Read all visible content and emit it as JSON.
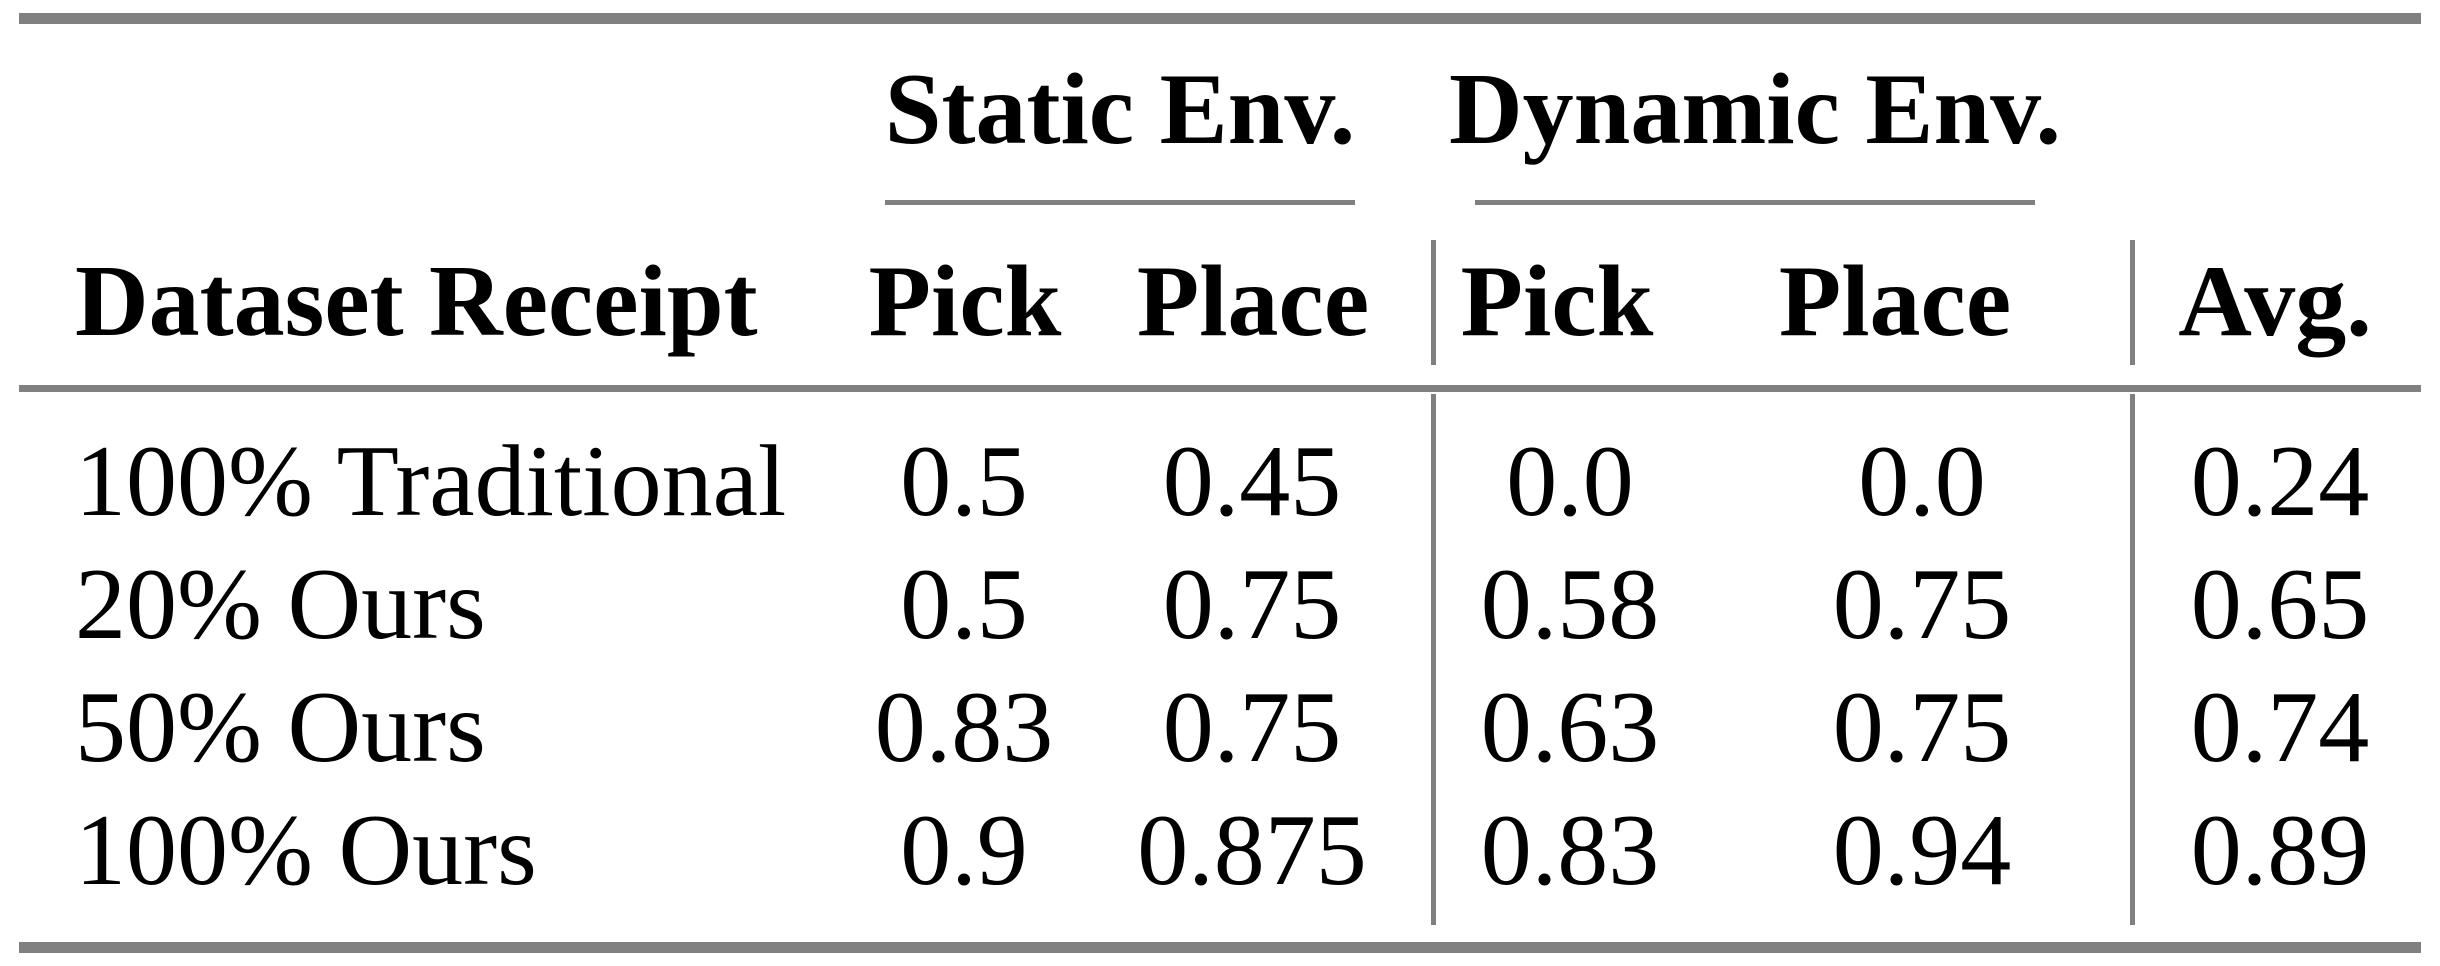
{
  "colors": {
    "rule": "#808080",
    "text": "#000000",
    "background": "#ffffff"
  },
  "table": {
    "groups": {
      "static": "Static Env.",
      "dynamic": "Dynamic Env."
    },
    "headers": {
      "dataset": "Dataset Receipt",
      "static_pick": "Pick",
      "static_place": "Place",
      "dynamic_pick": "Pick",
      "dynamic_place": "Place",
      "avg": "Avg."
    },
    "rows": [
      {
        "label": "100% Traditional",
        "static_pick": "0.5",
        "static_place": "0.45",
        "dynamic_pick": "0.0",
        "dynamic_place": "0.0",
        "avg": "0.24"
      },
      {
        "label": "20% Ours",
        "static_pick": "0.5",
        "static_place": "0.75",
        "dynamic_pick": "0.58",
        "dynamic_place": "0.75",
        "avg": "0.65"
      },
      {
        "label": "50% Ours",
        "static_pick": "0.83",
        "static_place": "0.75",
        "dynamic_pick": "0.63",
        "dynamic_place": "0.75",
        "avg": "0.74"
      },
      {
        "label": "100% Ours",
        "static_pick": "0.9",
        "static_place": "0.875",
        "dynamic_pick": "0.83",
        "dynamic_place": "0.94",
        "avg": "0.89"
      }
    ]
  },
  "chart_data": {
    "type": "table",
    "columns": [
      "Dataset Receipt",
      "Static Env. Pick",
      "Static Env. Place",
      "Dynamic Env. Pick",
      "Dynamic Env. Place",
      "Avg."
    ],
    "rows": [
      [
        "100% Traditional",
        0.5,
        0.45,
        0.0,
        0.0,
        0.24
      ],
      [
        "20% Ours",
        0.5,
        0.75,
        0.58,
        0.75,
        0.65
      ],
      [
        "50% Ours",
        0.83,
        0.75,
        0.63,
        0.75,
        0.74
      ],
      [
        "100% Ours",
        0.9,
        0.875,
        0.83,
        0.94,
        0.89
      ]
    ]
  }
}
